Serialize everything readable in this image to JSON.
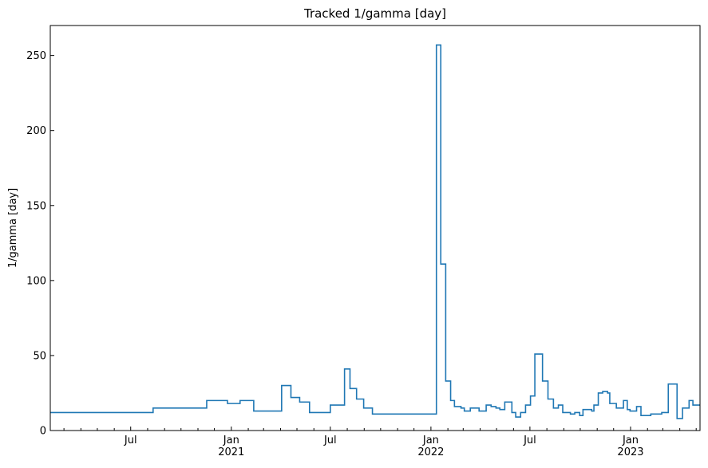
{
  "chart_data": {
    "type": "line",
    "title": "Tracked 1/gamma [day]",
    "ylabel": "1/gamma [day]",
    "x": [
      "2020-02-05",
      "2020-08-11",
      "2020-11-17",
      "2020-12-25",
      "2021-01-17",
      "2021-02-11",
      "2021-04-03",
      "2021-04-20",
      "2021-05-06",
      "2021-05-24",
      "2021-07-01",
      "2021-07-27",
      "2021-08-06",
      "2021-08-18",
      "2021-08-31",
      "2021-09-16",
      "2022-01-11",
      "2022-01-19",
      "2022-01-28",
      "2022-02-06",
      "2022-02-13",
      "2022-02-25",
      "2022-03-03",
      "2022-03-14",
      "2022-03-30",
      "2022-04-12",
      "2022-04-21",
      "2022-04-30",
      "2022-05-07",
      "2022-05-16",
      "2022-05-29",
      "2022-06-05",
      "2022-06-14",
      "2022-06-23",
      "2022-07-02",
      "2022-07-10",
      "2022-07-24",
      "2022-08-03",
      "2022-08-13",
      "2022-08-22",
      "2022-08-30",
      "2022-09-13",
      "2022-09-21",
      "2022-09-30",
      "2022-10-06",
      "2022-10-22",
      "2022-10-26",
      "2022-11-03",
      "2022-11-11",
      "2022-11-20",
      "2022-11-24",
      "2022-12-06",
      "2022-12-19",
      "2022-12-26",
      "2022-12-31",
      "2023-01-12",
      "2023-01-20",
      "2023-02-07",
      "2023-02-27",
      "2023-03-11",
      "2023-03-27",
      "2023-04-06",
      "2023-04-18",
      "2023-04-25",
      "2023-05-08"
    ],
    "series": [
      {
        "name": "1/gamma",
        "color": "#1f77b4",
        "values": [
          12,
          15,
          20,
          18,
          20,
          13,
          30,
          22,
          19,
          12,
          17,
          41,
          28,
          21,
          15,
          11,
          257,
          111,
          33,
          20,
          16,
          15,
          13,
          15,
          13,
          17,
          16,
          15,
          14,
          19,
          12,
          9,
          12,
          17,
          23,
          51,
          33,
          21,
          15,
          17,
          12,
          11,
          12,
          10,
          14,
          13,
          17,
          25,
          26,
          25,
          18,
          15,
          20,
          14,
          13,
          16,
          10,
          11,
          12,
          31,
          8,
          15,
          20,
          17,
          17
        ]
      }
    ],
    "xlim": [
      "2020-02-05",
      "2023-05-08"
    ],
    "xticks": [
      {
        "value": "2020-07-01",
        "label": "Jul"
      },
      {
        "value": "2021-01-01",
        "label": "Jan\n2021"
      },
      {
        "value": "2021-07-01",
        "label": "Jul"
      },
      {
        "value": "2022-01-01",
        "label": "Jan\n2022"
      },
      {
        "value": "2022-07-01",
        "label": "Jul"
      },
      {
        "value": "2023-01-01",
        "label": "Jan\n2023"
      }
    ],
    "xticks_minor": [
      "2020-03-01",
      "2020-04-01",
      "2020-05-01",
      "2020-06-01",
      "2020-08-01",
      "2020-09-01",
      "2020-10-01",
      "2020-11-01",
      "2020-12-01",
      "2021-02-01",
      "2021-03-01",
      "2021-04-01",
      "2021-05-01",
      "2021-06-01",
      "2021-08-01",
      "2021-09-01",
      "2021-10-01",
      "2021-11-01",
      "2021-12-01",
      "2022-02-01",
      "2022-03-01",
      "2022-04-01",
      "2022-05-01",
      "2022-06-01",
      "2022-08-01",
      "2022-09-01",
      "2022-10-01",
      "2022-11-01",
      "2022-12-01",
      "2023-02-01",
      "2023-03-01",
      "2023-04-01",
      "2023-05-01"
    ],
    "ylim": [
      0,
      270
    ],
    "yticks": [
      0,
      50,
      100,
      150,
      200,
      250
    ],
    "grid": false
  }
}
